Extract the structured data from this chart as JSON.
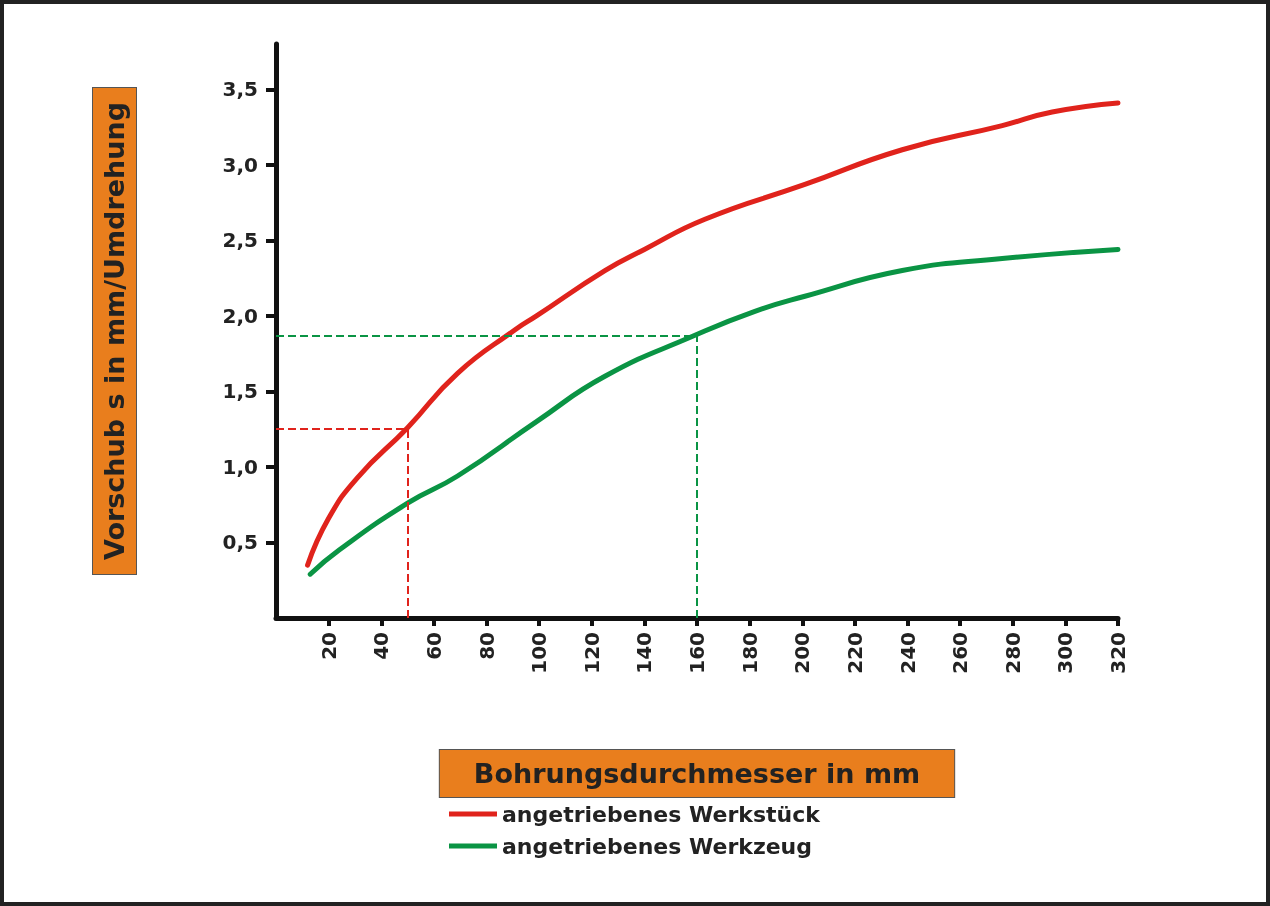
{
  "chart_data": {
    "type": "line",
    "xlabel": "Bohrungsdurchmesser in mm",
    "ylabel": "Vorschub s in mm/Umdrehung",
    "xlim": [
      0,
      320
    ],
    "xticks": [
      20,
      40,
      60,
      80,
      100,
      120,
      140,
      160,
      180,
      200,
      220,
      240,
      260,
      280,
      300,
      320
    ],
    "ylim": [
      0,
      3.8
    ],
    "yticks": [
      {
        "value": 0.5,
        "label": "0,5"
      },
      {
        "value": 1.0,
        "label": "1,0"
      },
      {
        "value": 1.5,
        "label": "1,5"
      },
      {
        "value": 2.0,
        "label": "2,0"
      },
      {
        "value": 2.5,
        "label": "2,5"
      },
      {
        "value": 3.0,
        "label": "3,0"
      },
      {
        "value": 3.5,
        "label": "3,5"
      }
    ],
    "series": [
      {
        "name": "angetriebenes Werkstück",
        "color": "#e0231c",
        "x": [
          12,
          20,
          31,
          50,
          69,
          91,
          99,
          125,
          140,
          163,
          201,
          238,
          276,
          295,
          320
        ],
        "values": [
          0.35,
          0.66,
          0.93,
          1.26,
          1.62,
          1.91,
          2.0,
          2.3,
          2.44,
          2.64,
          2.87,
          3.1,
          3.26,
          3.35,
          3.41
        ]
      },
      {
        "name": "angetriebenes Werkzeug",
        "color": "#0a9444",
        "x": [
          13,
          24,
          50,
          69,
          99,
          125,
          159,
          182,
          201,
          238,
          276,
          320
        ],
        "values": [
          0.29,
          0.45,
          0.76,
          0.94,
          1.3,
          1.6,
          1.87,
          2.03,
          2.13,
          2.3,
          2.38,
          2.44
        ]
      }
    ],
    "ref_lines": [
      {
        "axis": "x",
        "value": 50,
        "color": "#e0231c",
        "line_style": "dashed"
      },
      {
        "axis": "y",
        "value": 1.25,
        "color": "#e0231c",
        "line_style": "dashed"
      },
      {
        "axis": "x",
        "value": 160,
        "color": "#0a9444",
        "line_style": "dashed"
      },
      {
        "axis": "y",
        "value": 1.87,
        "color": "#0a9444",
        "line_style": "dashed"
      }
    ],
    "legend": "bottom",
    "grid": false,
    "marker": "none",
    "line_style": "solid"
  }
}
